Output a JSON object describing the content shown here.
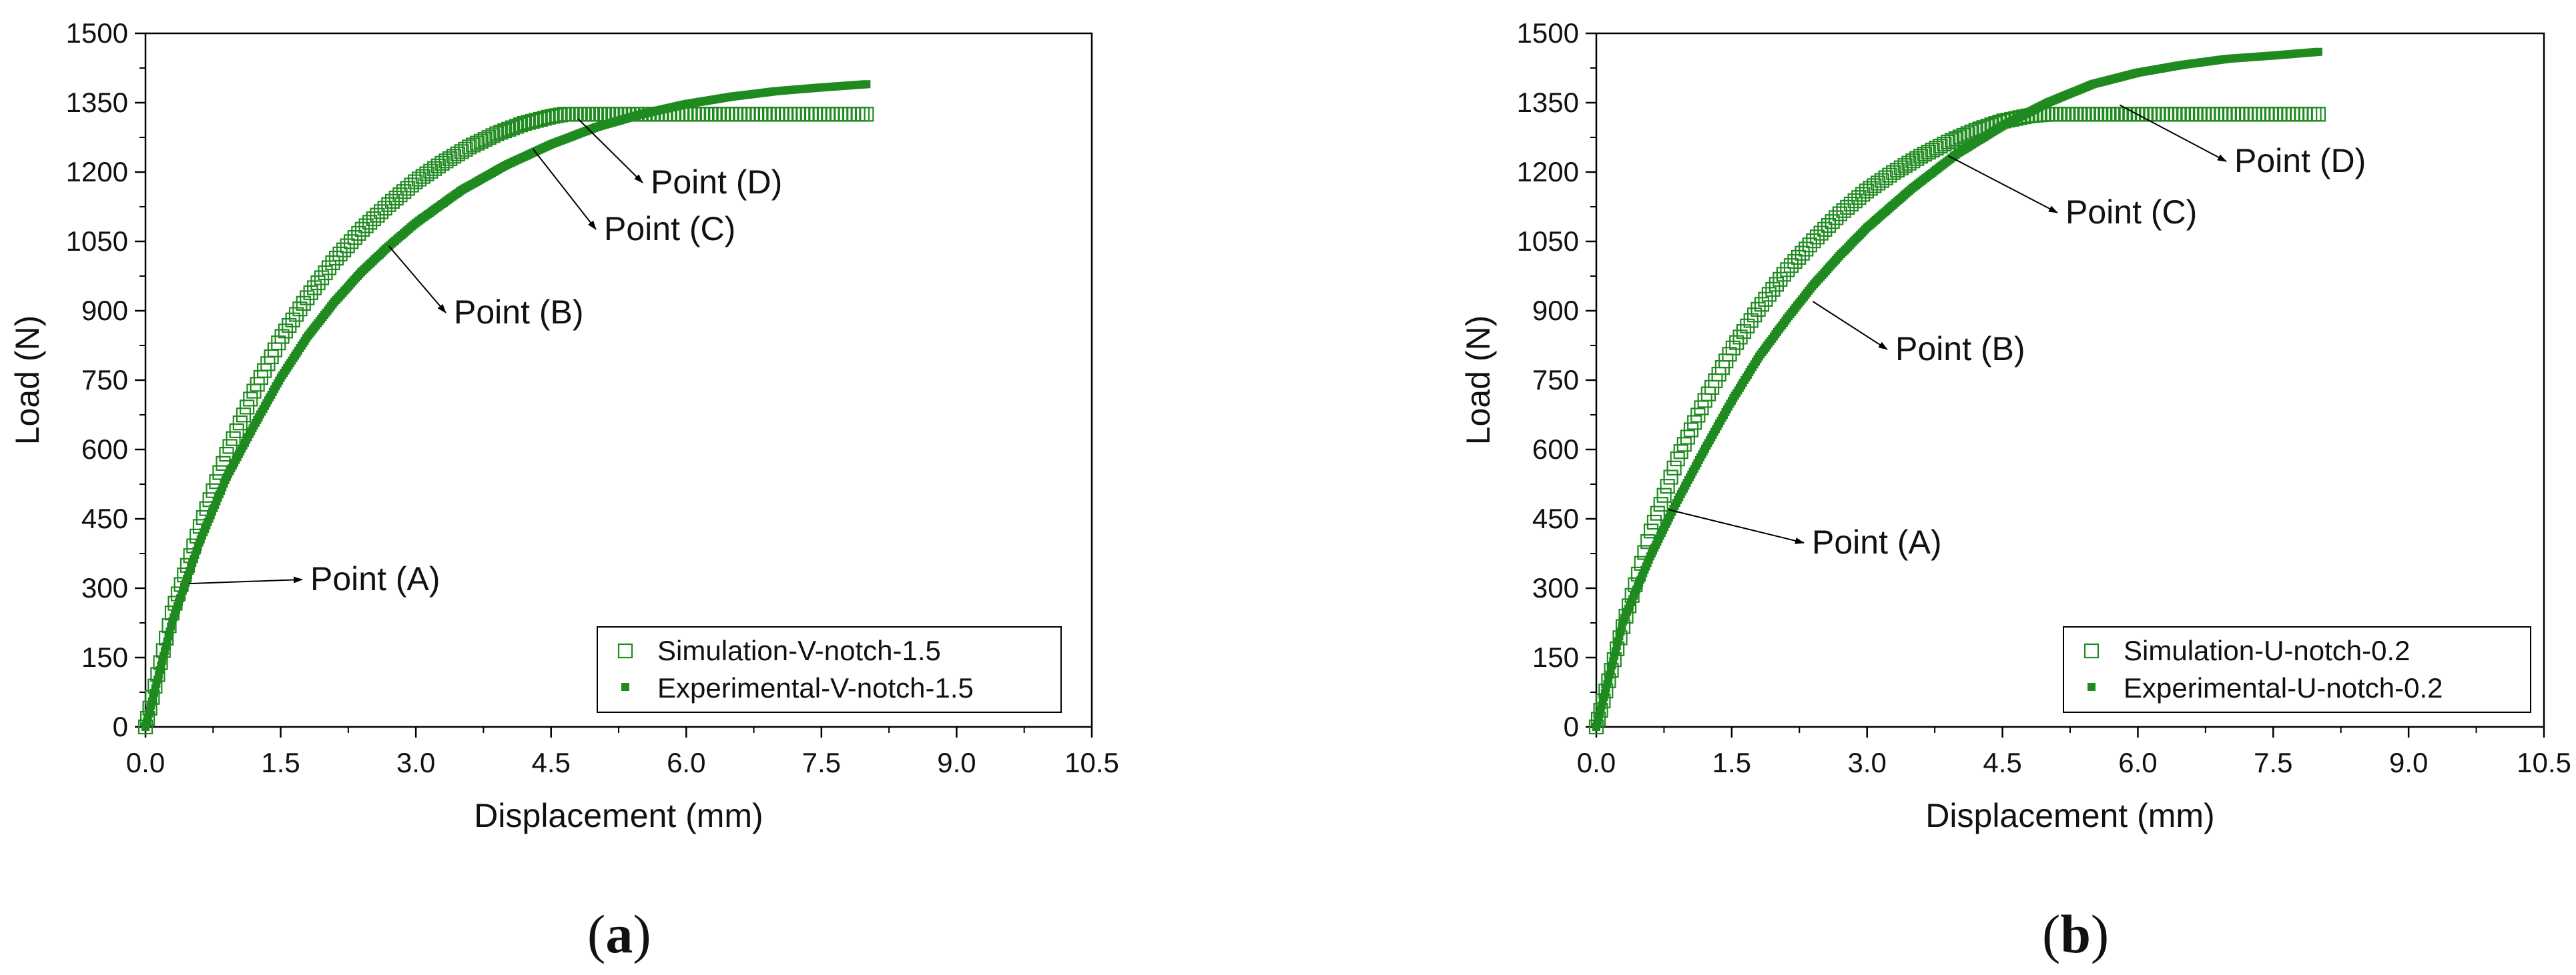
{
  "colors": {
    "series": "#1f8a1f",
    "axis": "#000000",
    "arrow": "#000000"
  },
  "chart_data": [
    {
      "panel": "a",
      "type": "scatter",
      "xlabel": "Displacement (mm)",
      "ylabel": "Load (N)",
      "xlim": [
        0,
        10.5
      ],
      "ylim": [
        0,
        1500
      ],
      "xticks": [
        "0.0",
        "1.5",
        "3.0",
        "4.5",
        "6.0",
        "7.5",
        "9.0",
        "10.5"
      ],
      "yticks": [
        "0",
        "150",
        "300",
        "450",
        "600",
        "750",
        "900",
        "1050",
        "1200",
        "1350",
        "1500"
      ],
      "grid": false,
      "legend_position": "bottom-right",
      "series": [
        {
          "name": "Simulation-V-notch-1.5",
          "marker": "open-square",
          "x": [
            0.0,
            0.3,
            0.6,
            0.9,
            1.2,
            1.5,
            1.8,
            2.1,
            2.4,
            2.7,
            3.0,
            3.3,
            3.6,
            3.9,
            4.2,
            4.5,
            4.65,
            5.0,
            5.5,
            6.0,
            6.5,
            7.0,
            7.5,
            8.0
          ],
          "y": [
            0,
            250,
            430,
            590,
            725,
            840,
            930,
            1010,
            1075,
            1130,
            1180,
            1220,
            1255,
            1283,
            1305,
            1320,
            1325,
            1325,
            1325,
            1325,
            1325,
            1325,
            1325,
            1325
          ]
        },
        {
          "name": "Experimental-V-notch-1.5",
          "marker": "filled-square",
          "x": [
            0.0,
            0.3,
            0.6,
            0.9,
            1.2,
            1.5,
            1.8,
            2.1,
            2.4,
            2.7,
            3.0,
            3.5,
            4.0,
            4.5,
            5.0,
            5.5,
            6.0,
            6.5,
            7.0,
            7.5,
            8.0
          ],
          "y": [
            0,
            230,
            400,
            540,
            650,
            755,
            845,
            920,
            985,
            1040,
            1090,
            1160,
            1215,
            1260,
            1297,
            1325,
            1347,
            1363,
            1375,
            1383,
            1390
          ]
        }
      ],
      "annotations": [
        {
          "label": "Point (A)",
          "x": 0.48,
          "y": 310
        },
        {
          "label": "Point (B)",
          "x": 2.7,
          "y": 1040
        },
        {
          "label": "Point (C)",
          "x": 4.3,
          "y": 1250
        },
        {
          "label": "Point (D)",
          "x": 4.8,
          "y": 1315
        }
      ],
      "caption": "a"
    },
    {
      "panel": "b",
      "type": "scatter",
      "xlabel": "Displacement (mm)",
      "ylabel": "Load (N)",
      "xlim": [
        0,
        10.5
      ],
      "ylim": [
        0,
        1500
      ],
      "xticks": [
        "0.0",
        "1.5",
        "3.0",
        "4.5",
        "6.0",
        "7.5",
        "9.0",
        "10.5"
      ],
      "yticks": [
        "0",
        "150",
        "300",
        "450",
        "600",
        "750",
        "900",
        "1050",
        "1200",
        "1350",
        "1500"
      ],
      "grid": false,
      "legend_position": "bottom-right",
      "series": [
        {
          "name": "Simulation-U-notch-0.2",
          "marker": "open-square",
          "x": [
            0.0,
            0.3,
            0.6,
            0.9,
            1.2,
            1.5,
            1.8,
            2.1,
            2.4,
            2.7,
            3.0,
            3.3,
            3.6,
            3.9,
            4.2,
            4.5,
            4.8,
            5.0,
            5.5,
            6.0,
            6.5,
            7.0,
            7.5,
            8.0
          ],
          "y": [
            0,
            220,
            420,
            580,
            705,
            815,
            905,
            985,
            1050,
            1110,
            1160,
            1200,
            1235,
            1265,
            1290,
            1310,
            1322,
            1325,
            1325,
            1325,
            1325,
            1325,
            1325,
            1325
          ]
        },
        {
          "name": "Experimental-U-notch-0.2",
          "marker": "filled-square",
          "x": [
            0.0,
            0.3,
            0.6,
            0.9,
            1.2,
            1.5,
            1.8,
            2.1,
            2.4,
            2.7,
            3.0,
            3.5,
            4.0,
            4.5,
            5.0,
            5.5,
            6.0,
            6.5,
            7.0,
            7.5,
            8.0
          ],
          "y": [
            0,
            230,
            370,
            490,
            600,
            705,
            800,
            880,
            955,
            1020,
            1080,
            1165,
            1240,
            1300,
            1350,
            1390,
            1415,
            1432,
            1445,
            1452,
            1460
          ]
        }
      ],
      "annotations": [
        {
          "label": "Point (A)",
          "x": 0.8,
          "y": 470
        },
        {
          "label": "Point (B)",
          "x": 2.4,
          "y": 920
        },
        {
          "label": "Point (C)",
          "x": 3.9,
          "y": 1235
        },
        {
          "label": "Point (D)",
          "x": 5.8,
          "y": 1345
        }
      ],
      "caption": "b"
    }
  ]
}
